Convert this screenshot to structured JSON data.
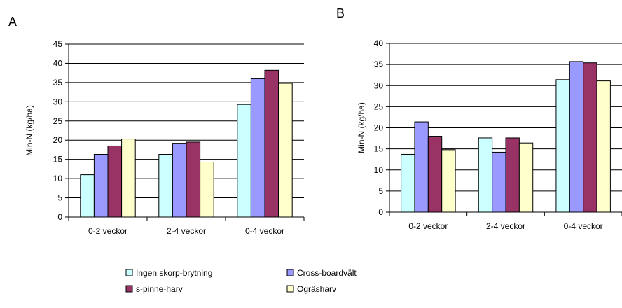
{
  "chart_data": [
    {
      "panel_label": "A",
      "type": "bar",
      "categories": [
        "0-2 veckor",
        "2-4 veckor",
        "0-4 veckor"
      ],
      "ylabel": "Min-N (kg/ha)",
      "ylim": [
        0,
        45
      ],
      "yticks": [
        0,
        5,
        10,
        15,
        20,
        25,
        30,
        35,
        40,
        45
      ],
      "grid": true,
      "series": [
        {
          "name": "Ingen skorp-brytning",
          "color": "#ccffff",
          "values": [
            11,
            16.3,
            29.3
          ]
        },
        {
          "name": "Cross-boardvält",
          "color": "#9999ff",
          "values": [
            16.3,
            19.2,
            36
          ]
        },
        {
          "name": "s-pinne-harv",
          "color": "#993366",
          "values": [
            18.5,
            19.5,
            38.2
          ]
        },
        {
          "name": "Ogräsharv",
          "color": "#ffffcc",
          "values": [
            20.3,
            14.3,
            34.8
          ]
        }
      ]
    },
    {
      "panel_label": "B",
      "type": "bar",
      "categories": [
        "0-2 veckor",
        "2-4 veckor",
        "0-4 veckor"
      ],
      "ylabel": "Min-N (kg/ha)",
      "ylim": [
        0,
        40
      ],
      "yticks": [
        0,
        5,
        10,
        15,
        20,
        25,
        30,
        35,
        40
      ],
      "grid": true,
      "series": [
        {
          "name": "Ingen skorp-brytning",
          "color": "#ccffff",
          "values": [
            13.7,
            17.6,
            31.4
          ]
        },
        {
          "name": "Cross-boardvält",
          "color": "#9999ff",
          "values": [
            21.4,
            14.2,
            35.7
          ]
        },
        {
          "name": "s-pinne-harv",
          "color": "#993366",
          "values": [
            18,
            17.6,
            35.4
          ]
        },
        {
          "name": "Ogräsharv",
          "color": "#ffffcc",
          "values": [
            14.8,
            16.4,
            31.1
          ]
        }
      ]
    }
  ],
  "legend": {
    "items": [
      {
        "label": "Ingen skorp-brytning",
        "color": "#ccffff"
      },
      {
        "label": "Cross-boardvält",
        "color": "#9999ff"
      },
      {
        "label": "s-pinne-harv",
        "color": "#993366"
      },
      {
        "label": "Ogräsharv",
        "color": "#ffffcc"
      }
    ]
  }
}
